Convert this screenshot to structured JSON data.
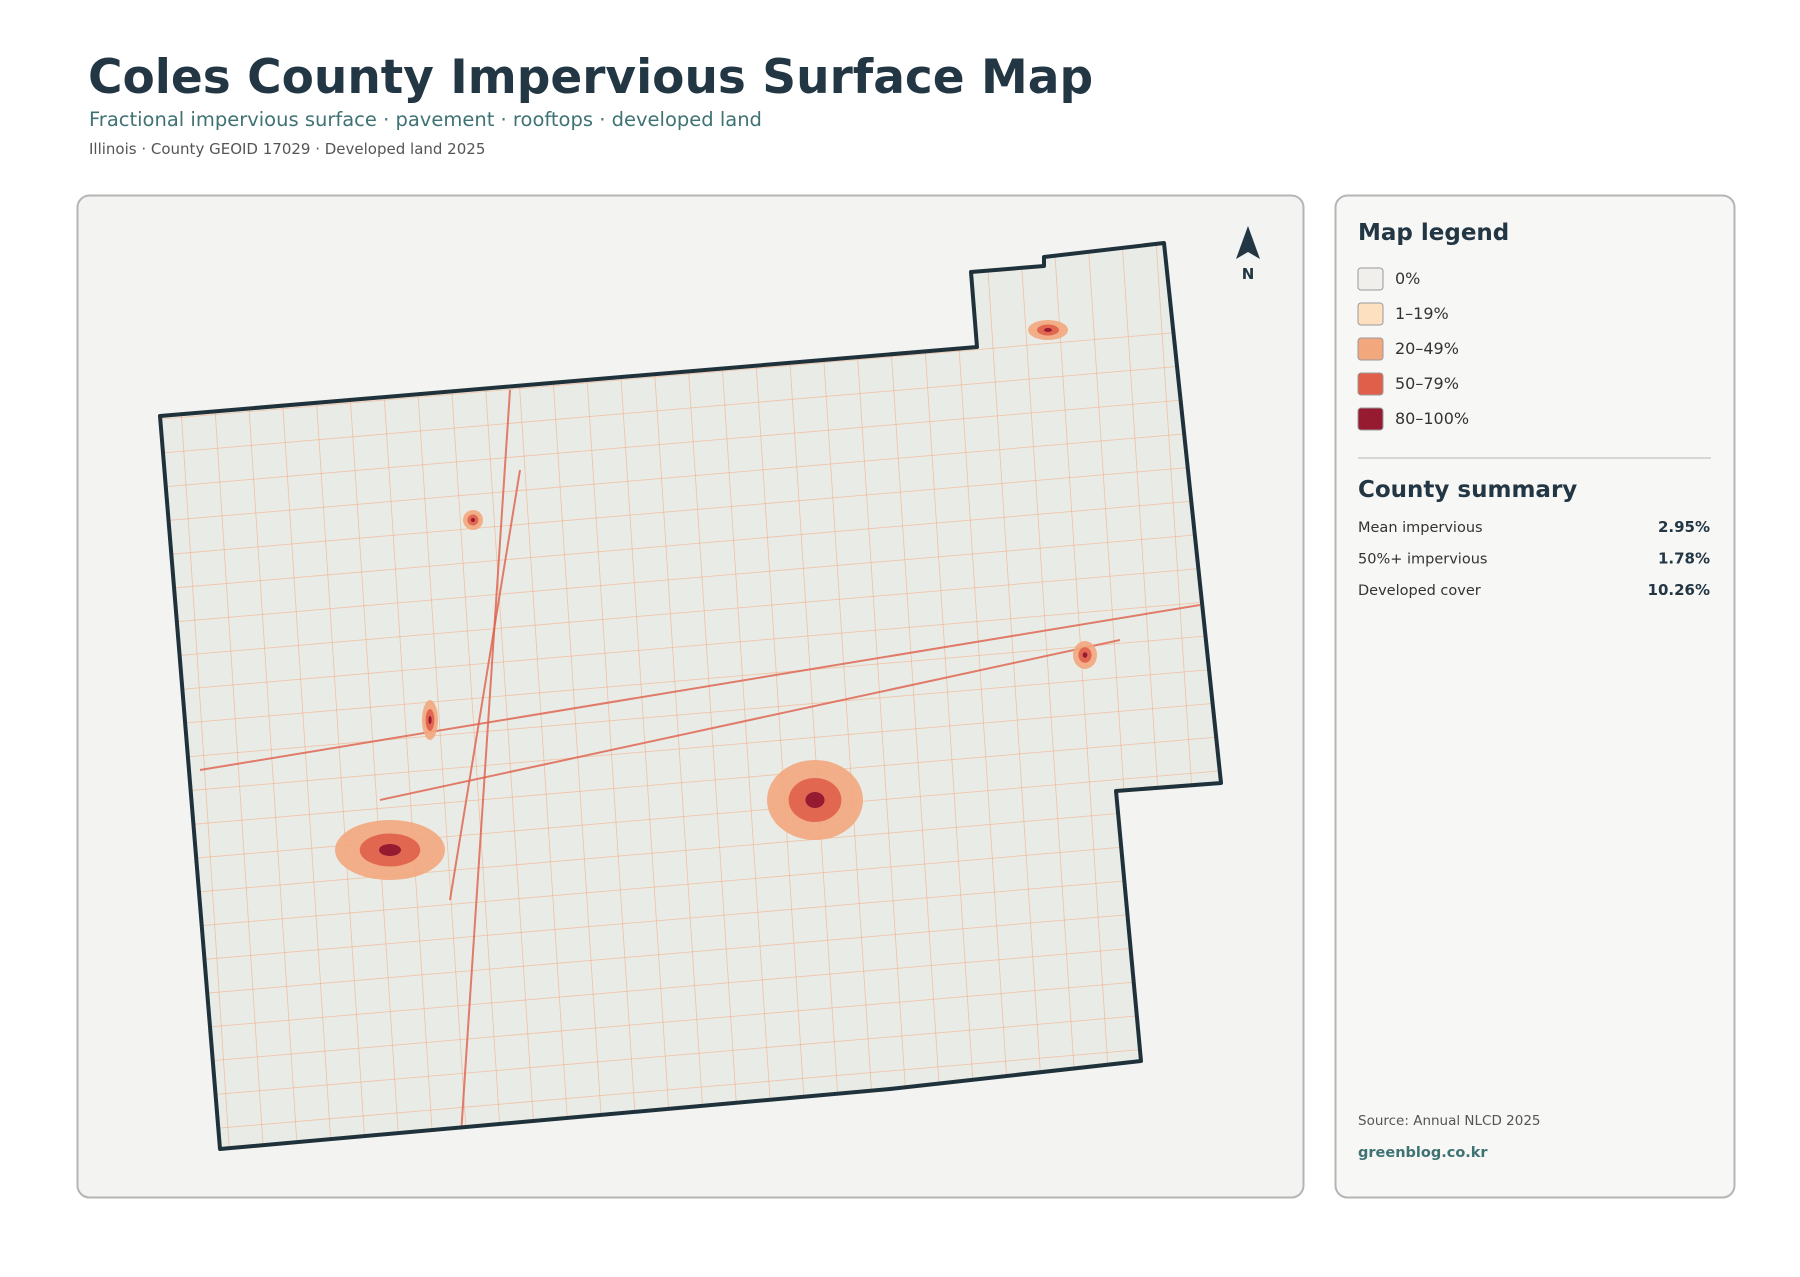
{
  "header": {
    "title": "Coles County Impervious Surface Map",
    "subtitle": "Fractional impervious surface · pavement · rooftops · developed land",
    "meta": "Illinois · County GEOID 17029 · Developed land 2025"
  },
  "map": {
    "north_label": "N"
  },
  "legend": {
    "title": "Map legend",
    "items": [
      {
        "label": "0%",
        "color": "#f0efec"
      },
      {
        "label": "1–19%",
        "color": "#fde0bf"
      },
      {
        "label": "20–49%",
        "color": "#f3a77d"
      },
      {
        "label": "50–79%",
        "color": "#df5f4b"
      },
      {
        "label": "80–100%",
        "color": "#961b30"
      }
    ]
  },
  "summary": {
    "title": "County summary",
    "rows": [
      {
        "label": "Mean impervious",
        "value": "2.95%"
      },
      {
        "label": "50%+ impervious",
        "value": "1.78%"
      },
      {
        "label": "Developed cover",
        "value": "10.26%"
      }
    ]
  },
  "footer": {
    "source": "Source: Annual NLCD 2025",
    "site": "greenblog.co.kr"
  }
}
